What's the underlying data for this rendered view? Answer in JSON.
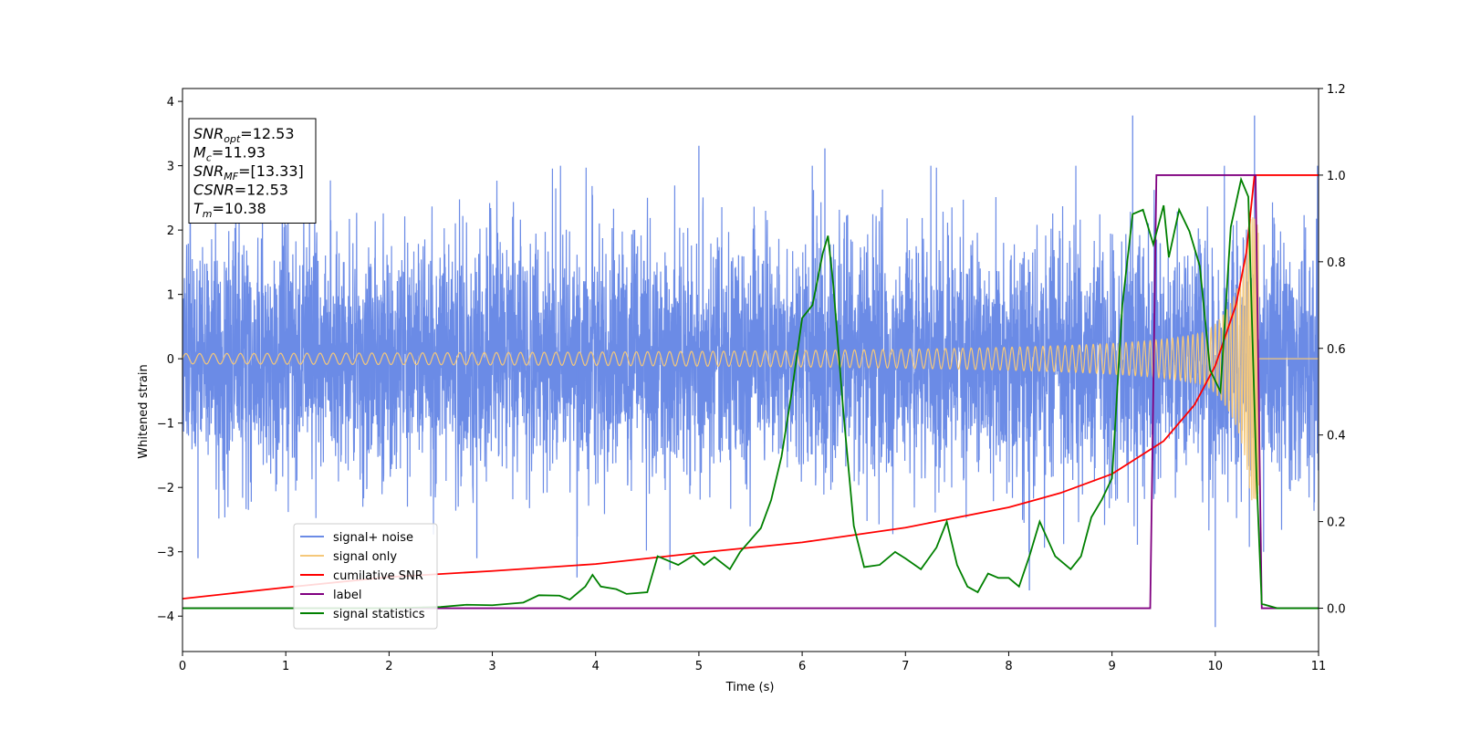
{
  "chart_data": {
    "type": "line",
    "xlabel": "Time (s)",
    "ylabel": "Whitened strain",
    "xlim": [
      0,
      11
    ],
    "ylim": [
      -4.55,
      4.2
    ],
    "y2lim": [
      -0.1,
      1.2
    ],
    "x_ticks": [
      0,
      1,
      2,
      3,
      4,
      5,
      6,
      7,
      8,
      9,
      10,
      11
    ],
    "y_ticks": [
      -4,
      -3,
      -2,
      -1,
      0,
      1,
      2,
      3,
      4
    ],
    "y2_ticks": [
      0.0,
      0.2,
      0.4,
      0.6,
      0.8,
      1.0,
      1.2
    ],
    "y2_tick_labels": [
      "0.0",
      "0.2",
      "0.4",
      "0.6",
      "0.8",
      "1.0",
      "1.2"
    ],
    "grid": false,
    "legend_position": "lower-left",
    "annotation": [
      {
        "sym": "SNR",
        "sub": "opt",
        "value": "=12.53"
      },
      {
        "sym": "M",
        "sub": "c",
        "value": "=11.93"
      },
      {
        "sym": "SNR",
        "sub": "MF",
        "value": "=[13.33]"
      },
      {
        "sym": "CSNR",
        "sub": "",
        "value": "=12.53"
      },
      {
        "sym": "T",
        "sub": "m",
        "value": "=10.38"
      }
    ],
    "series": [
      {
        "name": "signal+ noise",
        "color": "#6b8be6",
        "axis": "left",
        "kind": "noise",
        "std": 0.95,
        "peak_points": [
          [
            9.2,
            3.78
          ],
          [
            10.38,
            3.78
          ],
          [
            5.0,
            3.31
          ],
          [
            6.22,
            3.27
          ],
          [
            10.0,
            -4.17
          ],
          [
            8.2,
            -3.6
          ],
          [
            3.82,
            -3.4
          ],
          [
            4.72,
            -3.28
          ],
          [
            0.15,
            -3.1
          ],
          [
            2.85,
            -3.1
          ]
        ]
      },
      {
        "name": "signal only",
        "color": "#f5c87a",
        "axis": "left",
        "kind": "chirp",
        "t_merge": 10.42,
        "peak_amplitude": 2.2
      },
      {
        "name": "cumilative SNR",
        "color": "#ff0000",
        "axis": "right",
        "points": [
          [
            0,
            0.022
          ],
          [
            1,
            0.048
          ],
          [
            2,
            0.072
          ],
          [
            3,
            0.086
          ],
          [
            4,
            0.102
          ],
          [
            5,
            0.128
          ],
          [
            6,
            0.152
          ],
          [
            7,
            0.186
          ],
          [
            8,
            0.233
          ],
          [
            8.5,
            0.266
          ],
          [
            9,
            0.31
          ],
          [
            9.5,
            0.386
          ],
          [
            9.8,
            0.47
          ],
          [
            10.0,
            0.56
          ],
          [
            10.2,
            0.7
          ],
          [
            10.3,
            0.82
          ],
          [
            10.38,
            1.0
          ],
          [
            11,
            1.0
          ]
        ]
      },
      {
        "name": "label",
        "color": "#800080",
        "axis": "right",
        "points": [
          [
            0,
            0.0
          ],
          [
            9.37,
            0.0
          ],
          [
            9.43,
            1.0
          ],
          [
            10.39,
            1.0
          ],
          [
            10.45,
            0.0
          ],
          [
            11,
            0.0
          ]
        ]
      },
      {
        "name": "signal statistics",
        "color": "#008000",
        "axis": "right",
        "points": [
          [
            0,
            0.0
          ],
          [
            0.5,
            0.0
          ],
          [
            1.0,
            0.0
          ],
          [
            1.5,
            0.0
          ],
          [
            2.0,
            0.0
          ],
          [
            2.5,
            0.003
          ],
          [
            2.75,
            0.008
          ],
          [
            3.0,
            0.007
          ],
          [
            3.3,
            0.013
          ],
          [
            3.45,
            0.03
          ],
          [
            3.65,
            0.029
          ],
          [
            3.75,
            0.02
          ],
          [
            3.9,
            0.05
          ],
          [
            3.97,
            0.077
          ],
          [
            4.05,
            0.05
          ],
          [
            4.2,
            0.044
          ],
          [
            4.3,
            0.033
          ],
          [
            4.5,
            0.037
          ],
          [
            4.6,
            0.12
          ],
          [
            4.8,
            0.1
          ],
          [
            4.95,
            0.122
          ],
          [
            5.05,
            0.1
          ],
          [
            5.15,
            0.118
          ],
          [
            5.3,
            0.09
          ],
          [
            5.4,
            0.13
          ],
          [
            5.6,
            0.185
          ],
          [
            5.7,
            0.25
          ],
          [
            5.8,
            0.35
          ],
          [
            5.9,
            0.5
          ],
          [
            6.0,
            0.67
          ],
          [
            6.1,
            0.7
          ],
          [
            6.2,
            0.82
          ],
          [
            6.25,
            0.86
          ],
          [
            6.3,
            0.75
          ],
          [
            6.4,
            0.45
          ],
          [
            6.5,
            0.19
          ],
          [
            6.6,
            0.095
          ],
          [
            6.75,
            0.1
          ],
          [
            6.9,
            0.13
          ],
          [
            7.0,
            0.115
          ],
          [
            7.15,
            0.09
          ],
          [
            7.3,
            0.14
          ],
          [
            7.4,
            0.2
          ],
          [
            7.5,
            0.1
          ],
          [
            7.6,
            0.05
          ],
          [
            7.7,
            0.037
          ],
          [
            7.8,
            0.08
          ],
          [
            7.9,
            0.07
          ],
          [
            8.0,
            0.07
          ],
          [
            8.1,
            0.05
          ],
          [
            8.2,
            0.12
          ],
          [
            8.3,
            0.2
          ],
          [
            8.45,
            0.12
          ],
          [
            8.6,
            0.09
          ],
          [
            8.7,
            0.12
          ],
          [
            8.8,
            0.21
          ],
          [
            8.9,
            0.25
          ],
          [
            9.0,
            0.3
          ],
          [
            9.1,
            0.7
          ],
          [
            9.2,
            0.91
          ],
          [
            9.3,
            0.92
          ],
          [
            9.4,
            0.84
          ],
          [
            9.5,
            0.93
          ],
          [
            9.55,
            0.81
          ],
          [
            9.65,
            0.92
          ],
          [
            9.75,
            0.87
          ],
          [
            9.85,
            0.79
          ],
          [
            9.95,
            0.55
          ],
          [
            10.05,
            0.5
          ],
          [
            10.15,
            0.88
          ],
          [
            10.25,
            0.99
          ],
          [
            10.32,
            0.95
          ],
          [
            10.4,
            0.3
          ],
          [
            10.45,
            0.01
          ],
          [
            10.6,
            0.0
          ],
          [
            11,
            0.0
          ]
        ]
      }
    ]
  }
}
